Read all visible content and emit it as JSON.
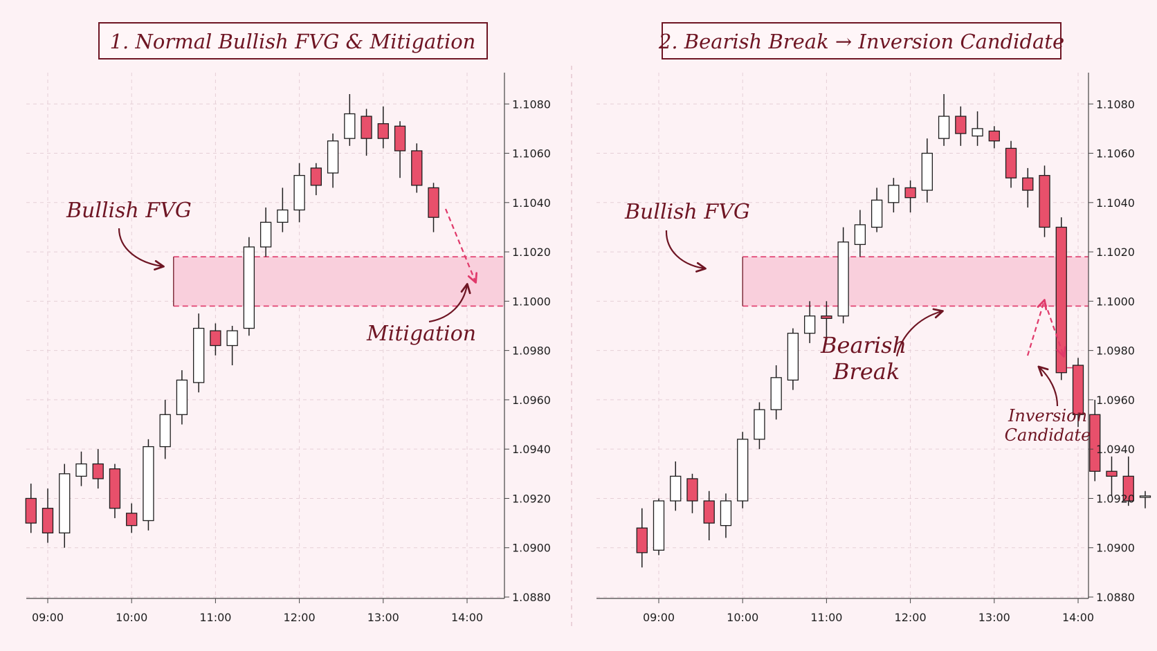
{
  "colors": {
    "background": "#fdf2f5",
    "bull_body": "#ffffff",
    "bear_body": "#e8506b",
    "candle_outline": "#1e1e1e",
    "fvg_fill": "#f9cfdc",
    "fvg_line": "#e0396a",
    "annotation": "#6e1523",
    "arrow_dashed": "#e0396a",
    "grid": "#e5cfd6"
  },
  "chart_data": [
    {
      "type": "candlestick",
      "title": "1. Normal Bullish FVG & Mitigation",
      "x_ticks": [
        "09:00",
        "10:00",
        "11:00",
        "12:00",
        "13:00",
        "14:00"
      ],
      "y_ticks": [
        "1.0880",
        "1.0900",
        "1.0920",
        "1.0940",
        "1.0960",
        "1.0980",
        "1.1000",
        "1.1020",
        "1.1040",
        "1.1060",
        "1.1080"
      ],
      "xlim": [
        "08:46",
        "14:29"
      ],
      "ylim": [
        1.088,
        1.109
      ],
      "grid": true,
      "candles": [
        {
          "time": "08:48",
          "open": 1.092,
          "high": 1.0926,
          "low": 1.0906,
          "close": 1.091
        },
        {
          "time": "09:00",
          "open": 1.0916,
          "high": 1.0924,
          "low": 1.0902,
          "close": 1.0906
        },
        {
          "time": "09:12",
          "open": 1.0906,
          "high": 1.0934,
          "low": 1.09,
          "close": 1.093
        },
        {
          "time": "09:24",
          "open": 1.0929,
          "high": 1.0939,
          "low": 1.0925,
          "close": 1.0934
        },
        {
          "time": "09:36",
          "open": 1.0934,
          "high": 1.094,
          "low": 1.0924,
          "close": 1.0928
        },
        {
          "time": "09:48",
          "open": 1.0932,
          "high": 1.0934,
          "low": 1.0912,
          "close": 1.0916
        },
        {
          "time": "10:00",
          "open": 1.0914,
          "high": 1.0918,
          "low": 1.0906,
          "close": 1.0909
        },
        {
          "time": "10:12",
          "open": 1.0911,
          "high": 1.0944,
          "low": 1.0907,
          "close": 1.0941
        },
        {
          "time": "10:24",
          "open": 1.0941,
          "high": 1.096,
          "low": 1.0936,
          "close": 1.0954
        },
        {
          "time": "10:36",
          "open": 1.0954,
          "high": 1.0972,
          "low": 1.095,
          "close": 1.0968
        },
        {
          "time": "10:48",
          "open": 1.0967,
          "high": 1.0995,
          "low": 1.0963,
          "close": 1.0989
        },
        {
          "time": "11:00",
          "open": 1.0988,
          "high": 1.0991,
          "low": 1.0978,
          "close": 1.0982
        },
        {
          "time": "11:12",
          "open": 1.0982,
          "high": 1.099,
          "low": 1.0974,
          "close": 1.0988
        },
        {
          "time": "11:24",
          "open": 1.0989,
          "high": 1.1026,
          "low": 1.0986,
          "close": 1.1022
        },
        {
          "time": "11:36",
          "open": 1.1022,
          "high": 1.1038,
          "low": 1.1018,
          "close": 1.1032
        },
        {
          "time": "11:48",
          "open": 1.1032,
          "high": 1.1046,
          "low": 1.1028,
          "close": 1.1037
        },
        {
          "time": "12:00",
          "open": 1.1037,
          "high": 1.1056,
          "low": 1.1032,
          "close": 1.1051
        },
        {
          "time": "12:12",
          "open": 1.1054,
          "high": 1.1056,
          "low": 1.1043,
          "close": 1.1047
        },
        {
          "time": "12:24",
          "open": 1.1052,
          "high": 1.1068,
          "low": 1.1046,
          "close": 1.1065
        },
        {
          "time": "12:36",
          "open": 1.1066,
          "high": 1.1084,
          "low": 1.1063,
          "close": 1.1076
        },
        {
          "time": "12:48",
          "open": 1.1075,
          "high": 1.1078,
          "low": 1.1059,
          "close": 1.1066
        },
        {
          "time": "13:00",
          "open": 1.1072,
          "high": 1.1079,
          "low": 1.1062,
          "close": 1.1066
        },
        {
          "time": "13:12",
          "open": 1.1071,
          "high": 1.1073,
          "low": 1.105,
          "close": 1.1061
        },
        {
          "time": "13:24",
          "open": 1.1061,
          "high": 1.1064,
          "low": 1.1044,
          "close": 1.1047
        },
        {
          "time": "13:36",
          "open": 1.1046,
          "high": 1.1048,
          "low": 1.1028,
          "close": 1.1034
        }
      ],
      "fvg": {
        "label": "Bullish FVG",
        "start_time": "10:30",
        "low": 1.0998,
        "high": 1.1018
      },
      "annotations": [
        "Bullish FVG",
        "Mitigation"
      ]
    },
    {
      "type": "candlestick",
      "title": "2. Bearish Break → Inversion Candidate",
      "x_ticks": [
        "09:00",
        "10:00",
        "11:00",
        "12:00",
        "13:00",
        "14:00"
      ],
      "y_ticks": [
        "1.0880",
        "1.0900",
        "1.0920",
        "1.0940",
        "1.0960",
        "1.0980",
        "1.1000",
        "1.1020",
        "1.1040",
        "1.1060",
        "1.1080"
      ],
      "xlim": [
        "08:46",
        "14:29"
      ],
      "ylim": [
        1.088,
        1.109
      ],
      "grid": true,
      "candles": [
        {
          "time": "08:48",
          "open": 1.0908,
          "high": 1.0916,
          "low": 1.0892,
          "close": 1.0898
        },
        {
          "time": "09:00",
          "open": 1.0899,
          "high": 1.092,
          "low": 1.0897,
          "close": 1.0919
        },
        {
          "time": "09:12",
          "open": 1.0919,
          "high": 1.0935,
          "low": 1.0915,
          "close": 1.0929
        },
        {
          "time": "09:24",
          "open": 1.0928,
          "high": 1.093,
          "low": 1.0914,
          "close": 1.0919
        },
        {
          "time": "09:36",
          "open": 1.0919,
          "high": 1.0923,
          "low": 1.0903,
          "close": 1.091
        },
        {
          "time": "09:48",
          "open": 1.0909,
          "high": 1.0922,
          "low": 1.0904,
          "close": 1.0919
        },
        {
          "time": "10:00",
          "open": 1.0919,
          "high": 1.0947,
          "low": 1.0916,
          "close": 1.0944
        },
        {
          "time": "10:12",
          "open": 1.0944,
          "high": 1.0959,
          "low": 1.094,
          "close": 1.0956
        },
        {
          "time": "10:24",
          "open": 1.0956,
          "high": 1.0974,
          "low": 1.0952,
          "close": 1.0969
        },
        {
          "time": "10:36",
          "open": 1.0968,
          "high": 1.0989,
          "low": 1.0964,
          "close": 1.0987
        },
        {
          "time": "10:48",
          "open": 1.0987,
          "high": 1.1,
          "low": 1.0983,
          "close": 1.0994
        },
        {
          "time": "11:00",
          "open": 1.0994,
          "high": 1.1,
          "low": 1.0985,
          "close": 1.0993
        },
        {
          "time": "11:12",
          "open": 1.0994,
          "high": 1.103,
          "low": 1.0991,
          "close": 1.1024
        },
        {
          "time": "11:24",
          "open": 1.1023,
          "high": 1.1037,
          "low": 1.1018,
          "close": 1.1031
        },
        {
          "time": "11:36",
          "open": 1.103,
          "high": 1.1046,
          "low": 1.1028,
          "close": 1.1041
        },
        {
          "time": "11:48",
          "open": 1.104,
          "high": 1.105,
          "low": 1.1036,
          "close": 1.1047
        },
        {
          "time": "12:00",
          "open": 1.1046,
          "high": 1.1049,
          "low": 1.1036,
          "close": 1.1042
        },
        {
          "time": "12:12",
          "open": 1.1045,
          "high": 1.1066,
          "low": 1.104,
          "close": 1.106
        },
        {
          "time": "12:24",
          "open": 1.1066,
          "high": 1.1084,
          "low": 1.1063,
          "close": 1.1075
        },
        {
          "time": "12:36",
          "open": 1.1075,
          "high": 1.1079,
          "low": 1.1063,
          "close": 1.1068
        },
        {
          "time": "12:48",
          "open": 1.1067,
          "high": 1.1077,
          "low": 1.1063,
          "close": 1.107
        },
        {
          "time": "13:00",
          "open": 1.1069,
          "high": 1.1071,
          "low": 1.1062,
          "close": 1.1065
        },
        {
          "time": "13:12",
          "open": 1.1062,
          "high": 1.1065,
          "low": 1.1046,
          "close": 1.105
        },
        {
          "time": "13:24",
          "open": 1.105,
          "high": 1.1054,
          "low": 1.1038,
          "close": 1.1045
        },
        {
          "time": "13:36",
          "open": 1.1051,
          "high": 1.1055,
          "low": 1.1026,
          "close": 1.103
        },
        {
          "time": "13:48",
          "open": 1.103,
          "high": 1.1034,
          "low": 1.0968,
          "close": 1.0971
        },
        {
          "time": "14:00",
          "open": 1.0974,
          "high": 1.0977,
          "low": 1.0949,
          "close": 1.0954
        },
        {
          "time": "14:12",
          "open": 1.0954,
          "high": 1.096,
          "low": 1.0927,
          "close": 1.0931
        },
        {
          "time": "14:24",
          "open": 1.0931,
          "high": 1.0937,
          "low": 1.0921,
          "close": 1.0929
        },
        {
          "time": "14:36",
          "open": 1.0929,
          "high": 1.0937,
          "low": 1.0917,
          "close": 1.0919
        },
        {
          "time": "14:48",
          "open": 1.0921,
          "high": 1.0923,
          "low": 1.0916,
          "close": 1.0921
        }
      ],
      "fvg": {
        "label": "Bullish FVG",
        "start_time": "10:00",
        "low": 1.0998,
        "high": 1.1018
      },
      "inversion_level": 1.0973,
      "annotations": [
        "Bullish FVG",
        "Bearish Break",
        "Inversion Candidate"
      ]
    }
  ],
  "annotations": {
    "p1_fvg": "Bullish FVG",
    "p1_mitigation": "Mitigation",
    "p2_fvg": "Bullish FVG",
    "p2_bearish_line1": "Bearish",
    "p2_bearish_line2": "Break",
    "p2_inversion_line1": "Inversion",
    "p2_inversion_line2": "Candidate"
  }
}
